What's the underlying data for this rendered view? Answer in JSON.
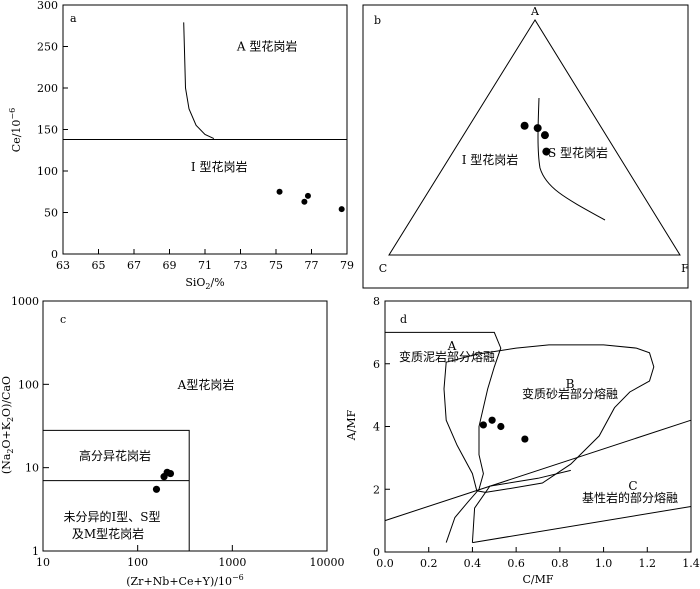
{
  "chart_data": [
    {
      "panel": "a",
      "type": "scatter",
      "xlabel": "SiO2/%",
      "ylabel": "Ce/10⁻⁶",
      "xlim": [
        63,
        79
      ],
      "ylim": [
        0,
        300
      ],
      "xticks": [
        "63",
        "65",
        "67",
        "69",
        "71",
        "73",
        "75",
        "77",
        "79"
      ],
      "yticks": [
        "0",
        "50",
        "100",
        "150",
        "200",
        "250",
        "300"
      ],
      "points": [
        {
          "x": 75.2,
          "y": 75
        },
        {
          "x": 76.6,
          "y": 63
        },
        {
          "x": 76.8,
          "y": 70
        },
        {
          "x": 78.7,
          "y": 54
        }
      ],
      "boundaries": [
        {
          "type": "hline",
          "y": 138
        },
        {
          "type": "curve",
          "points": [
            [
              69.8,
              279
            ],
            [
              69.85,
              240
            ],
            [
              69.9,
              200
            ],
            [
              70.1,
              175
            ],
            [
              70.5,
              155
            ],
            [
              71.0,
              144
            ],
            [
              71.5,
              139
            ]
          ]
        }
      ],
      "field_labels": [
        {
          "text": "A 型花岗岩",
          "x": 74.5,
          "y": 245
        },
        {
          "text": "I 型花岗岩",
          "x": 71.8,
          "y": 100
        }
      ]
    },
    {
      "panel": "b",
      "type": "scatter",
      "subtype": "ternary",
      "vertices": [
        "A",
        "C",
        "F"
      ],
      "points": [
        {
          "A": 0.55,
          "C": 0.26,
          "F": 0.19
        },
        {
          "A": 0.54,
          "C": 0.22,
          "F": 0.24
        },
        {
          "A": 0.51,
          "C": 0.21,
          "F": 0.28
        },
        {
          "A": 0.44,
          "C": 0.24,
          "F": 0.32
        }
      ],
      "field_labels": [
        {
          "text": "I 型花岗岩"
        },
        {
          "text": "S 型花岗岩"
        }
      ]
    },
    {
      "panel": "c",
      "type": "scatter",
      "xlabel": "(Zr+Nb+Ce+Y)/10⁻⁶",
      "ylabel": "(Na2O+K2O)/CaO",
      "xscale": "log",
      "yscale": "log",
      "xlim": [
        10,
        10000
      ],
      "ylim": [
        1,
        1000
      ],
      "xticks": [
        "10",
        "100",
        "1000",
        "10000"
      ],
      "yticks": [
        "1",
        "10",
        "100",
        "1000"
      ],
      "points": [
        {
          "x": 158,
          "y": 5.5
        },
        {
          "x": 190,
          "y": 7.8
        },
        {
          "x": 205,
          "y": 8.8
        },
        {
          "x": 222,
          "y": 8.5
        }
      ],
      "boundaries": [
        {
          "type": "polyline",
          "points": [
            [
              10,
              28
            ],
            [
              350,
              28
            ],
            [
              350,
              1
            ]
          ]
        },
        {
          "type": "polyline",
          "points": [
            [
              10,
              7
            ],
            [
              350,
              7
            ]
          ]
        }
      ],
      "field_labels": [
        {
          "text": "A型花岗岩"
        },
        {
          "text": "高分异花岗岩"
        },
        {
          "text": "未分异的I型、S型"
        },
        {
          "text": "及M型花岗岩"
        }
      ]
    },
    {
      "panel": "d",
      "type": "scatter",
      "xlabel": "C/MF",
      "ylabel": "A/MF",
      "xlim": [
        0,
        1.4
      ],
      "ylim": [
        0,
        8
      ],
      "xticks": [
        "0.0",
        "0.2",
        "0.4",
        "0.6",
        "0.8",
        "1.0",
        "1.2",
        "1.4"
      ],
      "yticks": [
        "0",
        "2",
        "4",
        "6",
        "8"
      ],
      "points": [
        {
          "x": 0.45,
          "y": 4.05
        },
        {
          "x": 0.49,
          "y": 4.2
        },
        {
          "x": 0.53,
          "y": 4.0
        },
        {
          "x": 0.64,
          "y": 3.6
        }
      ],
      "boundaries": [
        {
          "type": "polyline",
          "points": [
            [
              0,
              7.0
            ],
            [
              0.5,
              7.0
            ],
            [
              0.53,
              6.5
            ],
            [
              0.5,
              5.9
            ],
            [
              0.47,
              5.2
            ],
            [
              0.43,
              4.0
            ],
            [
              0.43,
              3.1
            ],
            [
              0.45,
              2.5
            ],
            [
              0.43,
              2.0
            ],
            [
              0.38,
              1.6
            ],
            [
              0.32,
              1.1
            ],
            [
              0.28,
              0.3
            ]
          ]
        },
        {
          "type": "polygon",
          "points": [
            [
              0.28,
              6.05
            ],
            [
              0.42,
              6.3
            ],
            [
              0.6,
              6.5
            ],
            [
              0.75,
              6.6
            ],
            [
              1.0,
              6.6
            ],
            [
              1.15,
              6.5
            ],
            [
              1.21,
              6.35
            ],
            [
              1.23,
              5.9
            ],
            [
              1.21,
              5.45
            ],
            [
              1.12,
              5.1
            ],
            [
              1.05,
              4.6
            ],
            [
              0.98,
              3.7
            ],
            [
              0.85,
              2.8
            ],
            [
              0.72,
              2.2
            ],
            [
              0.55,
              2.0
            ],
            [
              0.46,
              1.9
            ],
            [
              0.42,
              1.95
            ],
            [
              0.4,
              2.5
            ],
            [
              0.33,
              3.4
            ],
            [
              0.28,
              4.2
            ],
            [
              0.27,
              5.2
            ]
          ]
        },
        {
          "type": "polyline",
          "points": [
            [
              0,
              1.0
            ],
            [
              1.4,
              4.2
            ]
          ]
        },
        {
          "type": "polyline",
          "points": [
            [
              0.4,
              0.3
            ],
            [
              1.4,
              1.45
            ]
          ]
        },
        {
          "type": "polyline",
          "points": [
            [
              0.4,
              0.3
            ],
            [
              0.41,
              1.4
            ],
            [
              0.48,
              2.1
            ],
            [
              0.7,
              2.35
            ],
            [
              0.85,
              2.6
            ]
          ]
        }
      ],
      "field_labels": [
        {
          "text": "A"
        },
        {
          "text": "变质泥岩部分熔融"
        },
        {
          "text": "B"
        },
        {
          "text": "变质砂岩部分熔融"
        },
        {
          "text": "C"
        },
        {
          "text": "基性岩的部分熔融"
        }
      ]
    }
  ]
}
